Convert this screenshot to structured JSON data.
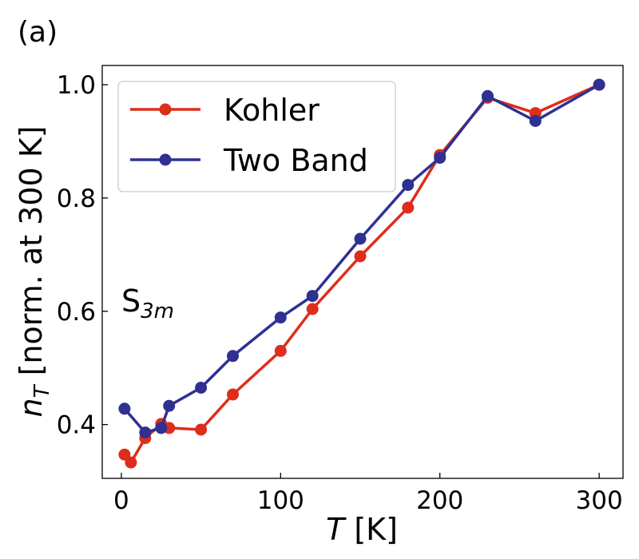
{
  "panel_label": "(a)",
  "annotation": {
    "base": "S",
    "sub": "3m"
  },
  "colors": {
    "kohler": "#de2d1b",
    "two_band": "#2e3192",
    "axis": "#000000",
    "legend_border": "#cccccc"
  },
  "chart_data": {
    "type": "line",
    "title": "",
    "xlabel": {
      "symbol": "T",
      "rest": " [K]"
    },
    "ylabel": {
      "symbol": "n",
      "sub": "T",
      "rest": " [norm. at 300 K]"
    },
    "xlim": [
      -12,
      315
    ],
    "ylim": [
      0.305,
      1.034
    ],
    "xticks": [
      0,
      100,
      200,
      300
    ],
    "xtick_labels": [
      "0",
      "100",
      "200",
      "300"
    ],
    "yticks": [
      0.4,
      0.6,
      0.8,
      1.0
    ],
    "ytick_labels": [
      "0.4",
      "0.6",
      "0.8",
      "1.0"
    ],
    "grid": false,
    "legend_position": "top-left",
    "series": [
      {
        "name": "Kohler",
        "color": "#de2d1b",
        "x": [
          2,
          6,
          15,
          25,
          30,
          50,
          70,
          100,
          120,
          150,
          180,
          200,
          230,
          260,
          300
        ],
        "y": [
          0.347,
          0.333,
          0.376,
          0.401,
          0.394,
          0.391,
          0.453,
          0.53,
          0.604,
          0.697,
          0.783,
          0.876,
          0.977,
          0.95,
          1.0
        ]
      },
      {
        "name": "Two Band",
        "color": "#2e3192",
        "x": [
          2,
          15,
          25,
          30,
          50,
          70,
          100,
          120,
          150,
          180,
          200,
          230,
          260,
          300
        ],
        "y": [
          0.428,
          0.386,
          0.394,
          0.433,
          0.465,
          0.521,
          0.589,
          0.627,
          0.728,
          0.823,
          0.871,
          0.98,
          0.936,
          1.0
        ]
      }
    ]
  }
}
